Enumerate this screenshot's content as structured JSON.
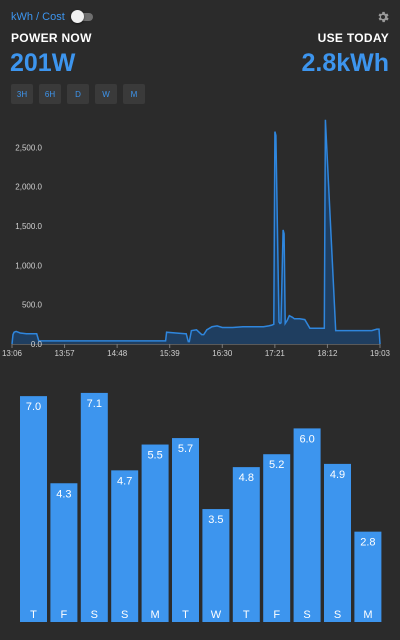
{
  "header": {
    "toggle_label": "kWh / Cost",
    "toggle_on": false,
    "left_title": "POWER NOW",
    "left_value": "201W",
    "right_title": "USE TODAY",
    "right_value": "2.8kWh",
    "settings_icon": "gear-icon"
  },
  "ranges": [
    "3H",
    "6H",
    "D",
    "W",
    "M"
  ],
  "colors": {
    "accent": "#3d95ee",
    "background": "#2b2b2b",
    "line": "#2f86dd",
    "fill": "#1f3e60"
  },
  "chart_data": [
    {
      "type": "area",
      "y_ticks": [
        "0.0",
        "500.0",
        "1,000.0",
        "1,500.0",
        "2,000.0",
        "2,500.0"
      ],
      "x_ticks": [
        "13:06",
        "13:57",
        "14:48",
        "15:39",
        "16:30",
        "17:21",
        "18:12",
        "19:03"
      ],
      "ylim": [
        0,
        3000
      ],
      "x_start": "13:06",
      "x_end": "19:03",
      "grid": false,
      "series": [
        {
          "x": [
            "13:06",
            "13:07",
            "13:08",
            "13:10",
            "13:12",
            "13:14",
            "13:20",
            "13:30",
            "13:32",
            "13:40",
            "13:50",
            "14:00",
            "14:20",
            "14:48",
            "15:10",
            "15:35",
            "15:36",
            "15:45",
            "15:54",
            "15:55",
            "15:57",
            "15:58",
            "16:00",
            "16:05",
            "16:10",
            "16:12",
            "16:15",
            "16:20",
            "16:25",
            "16:30",
            "16:40",
            "16:50",
            "17:00",
            "17:10",
            "17:15",
            "17:18",
            "17:20",
            "17:21",
            "17:22",
            "17:24",
            "17:25",
            "17:26",
            "17:27",
            "17:29",
            "17:30",
            "17:31",
            "17:33",
            "17:35",
            "17:38",
            "17:40",
            "17:45",
            "17:50",
            "17:55",
            "17:58",
            "18:00",
            "18:02",
            "18:05",
            "18:07",
            "18:08",
            "18:09",
            "18:10",
            "18:20",
            "18:40",
            "18:55",
            "19:00",
            "19:01",
            "19:02",
            "19:03"
          ],
          "y": [
            0,
            120,
            150,
            160,
            150,
            140,
            130,
            130,
            40,
            40,
            40,
            40,
            40,
            40,
            40,
            40,
            150,
            140,
            130,
            130,
            30,
            30,
            170,
            180,
            120,
            120,
            180,
            220,
            230,
            210,
            210,
            220,
            220,
            220,
            230,
            240,
            250,
            2700,
            2650,
            1100,
            280,
            260,
            270,
            1450,
            1400,
            260,
            300,
            360,
            340,
            320,
            320,
            310,
            200,
            200,
            200,
            200,
            200,
            200,
            200,
            200,
            2850,
            170,
            170,
            170,
            190,
            190,
            190,
            0
          ]
        }
      ]
    },
    {
      "type": "bar",
      "categories": [
        "T",
        "F",
        "S",
        "S",
        "M",
        "T",
        "W",
        "T",
        "F",
        "S",
        "S",
        "M"
      ],
      "values": [
        7.0,
        4.3,
        7.1,
        4.7,
        5.5,
        5.7,
        3.5,
        4.8,
        5.2,
        6.0,
        4.9,
        2.8
      ],
      "value_labels": [
        "7.0",
        "4.3",
        "7.1",
        "4.7",
        "5.5",
        "5.7",
        "3.5",
        "4.8",
        "5.2",
        "6.0",
        "4.9",
        "2.8"
      ],
      "grid": false
    }
  ]
}
